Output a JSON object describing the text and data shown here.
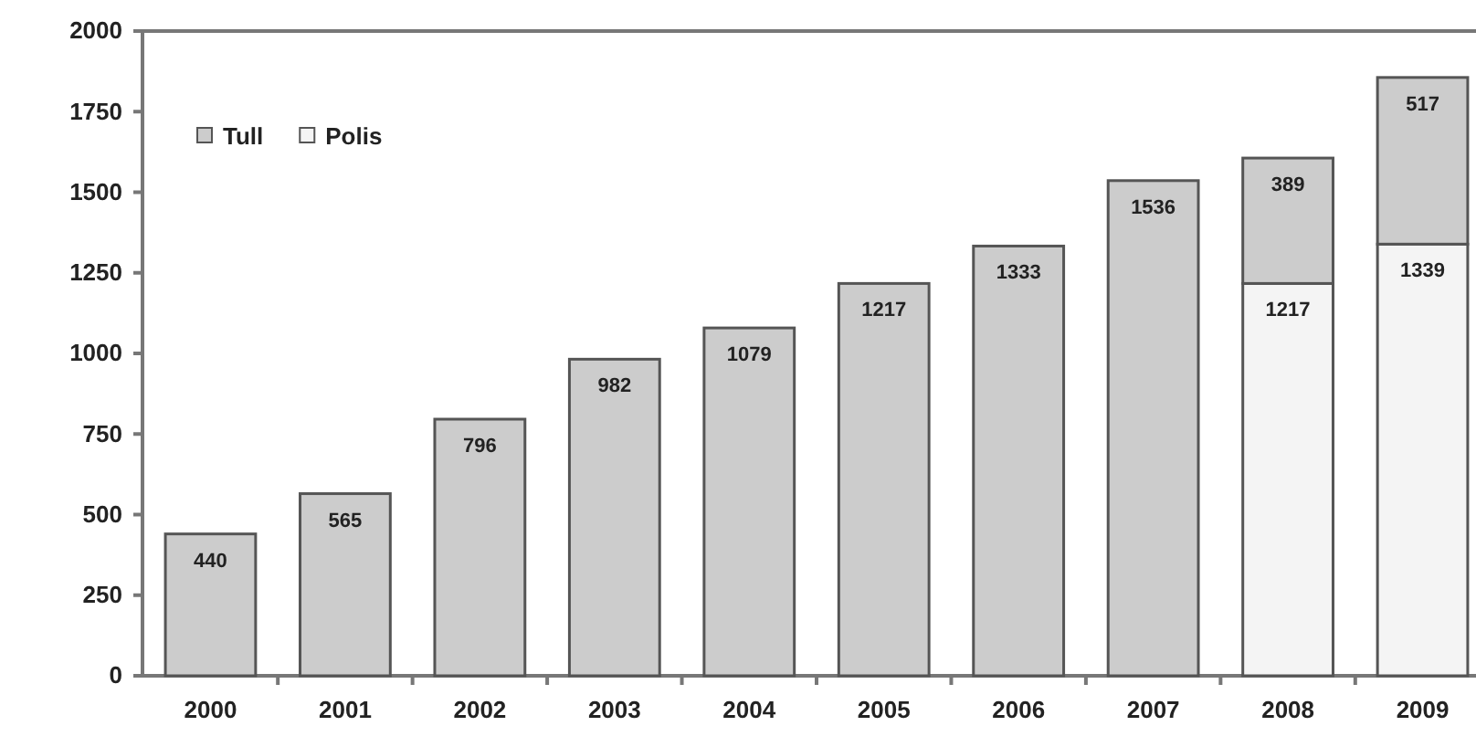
{
  "chart_data": {
    "type": "bar",
    "stacked": true,
    "categories": [
      "2000",
      "2001",
      "2002",
      "2003",
      "2004",
      "2005",
      "2006",
      "2007",
      "2008",
      "2009"
    ],
    "series": [
      {
        "name": "Polis",
        "color": "#f4f4f4",
        "values": [
          null,
          null,
          null,
          null,
          null,
          null,
          null,
          null,
          1217,
          1339
        ]
      },
      {
        "name": "Tull",
        "color": "#cccccc",
        "values": [
          440,
          565,
          796,
          982,
          1079,
          1217,
          1333,
          1536,
          389,
          517
        ]
      }
    ],
    "ylim": [
      0,
      2000
    ],
    "yticks": [
      0,
      250,
      500,
      750,
      1000,
      1250,
      1500,
      1750,
      2000
    ],
    "data_labels": true,
    "legend": "top left",
    "grid": false
  }
}
